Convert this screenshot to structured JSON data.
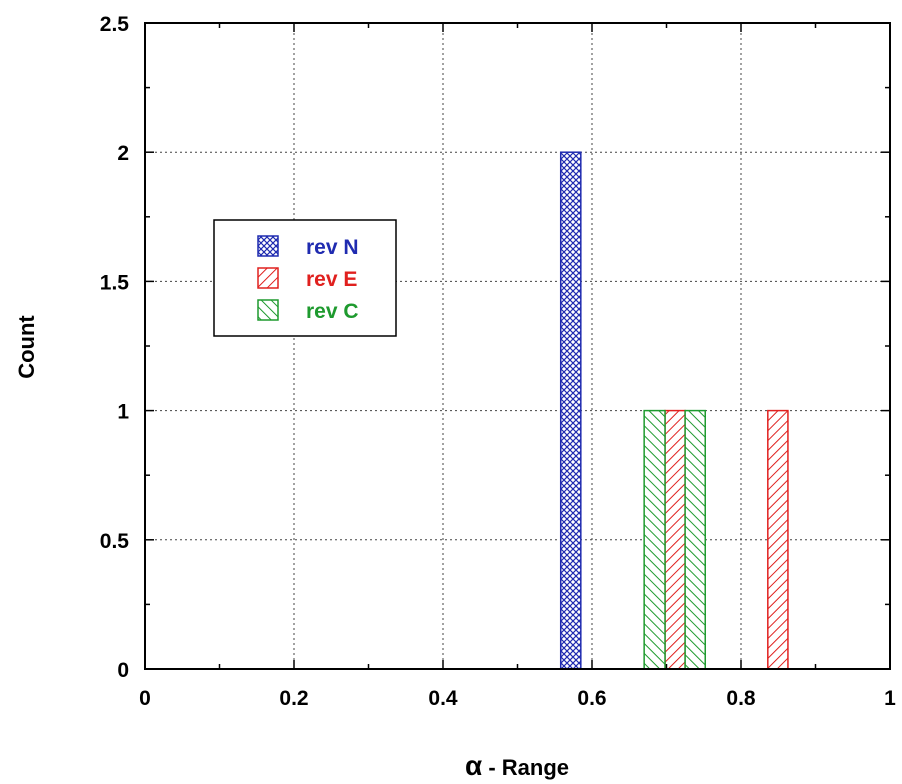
{
  "chart_data": {
    "type": "bar",
    "xlabel_symbol": "α",
    "xlabel_text": " - Range",
    "ylabel": "Count",
    "xlim": [
      0,
      1
    ],
    "ylim": [
      0,
      2.5
    ],
    "x_ticks": [
      0,
      0.2,
      0.4,
      0.6,
      0.8,
      1
    ],
    "x_tick_labels": [
      "0",
      "0.2",
      "0.4",
      "0.6",
      "0.8",
      "1"
    ],
    "y_ticks": [
      0,
      0.5,
      1,
      1.5,
      2,
      2.5
    ],
    "y_tick_labels": [
      "0",
      "0.5",
      "1",
      "1.5",
      "2",
      "2.5"
    ],
    "grid": true,
    "legend_position": "upper-left",
    "series": [
      {
        "name": "rev N",
        "color": "#1f2bb0",
        "pattern": "crosshatch",
        "bars": [
          {
            "x0": 0.558,
            "x1": 0.585,
            "value": 2
          }
        ]
      },
      {
        "name": "rev E",
        "color": "#e0201e",
        "pattern": "diagonal",
        "bars": [
          {
            "x0": 0.698,
            "x1": 0.725,
            "value": 1
          },
          {
            "x0": 0.836,
            "x1": 0.863,
            "value": 1
          }
        ]
      },
      {
        "name": "rev C",
        "color": "#1e9a2e",
        "pattern": "diagonal-reverse",
        "bars": [
          {
            "x0": 0.67,
            "x1": 0.698,
            "value": 1
          },
          {
            "x0": 0.725,
            "x1": 0.752,
            "value": 1
          }
        ]
      }
    ]
  }
}
